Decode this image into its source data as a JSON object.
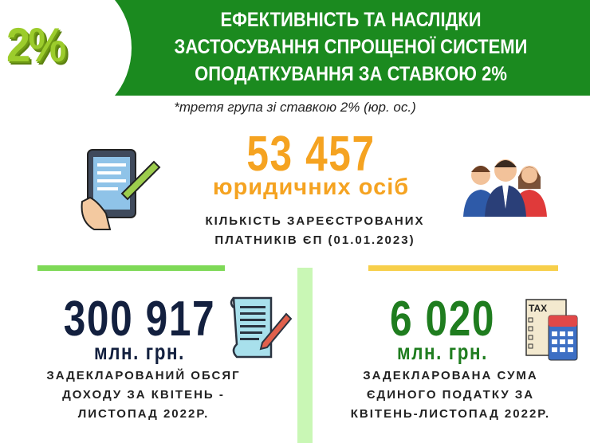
{
  "logo": {
    "text": "2%"
  },
  "header": {
    "title_lines": [
      "ЕФЕКТИВНІСТЬ ТА НАСЛІДКИ",
      "ЗАСТОСУВАННЯ СПРОЩЕНОЇ СИСТЕМИ",
      "ОПОДАТКУВАННЯ ЗА СТАВКОЮ 2%"
    ]
  },
  "subtitle": "*третя група зі ставкою 2% (юр. ос.)",
  "count": {
    "value": "53 457",
    "unit": "юридичних осіб",
    "desc_lines": [
      "КІЛЬКІСТЬ ЗАРЕЄСТРОВАНИХ",
      "ПЛАТНИКІВ ЄП (01.01.2023)"
    ]
  },
  "income": {
    "value": "300 917",
    "unit": "млн. грн.",
    "desc_lines": [
      "ЗАДЕКЛАРОВАНИЙ ОБСЯГ",
      "ДОХОДУ ЗА КВІТЕНЬ -",
      "ЛИСТОПАД 2022Р."
    ]
  },
  "tax": {
    "value": "6 020",
    "unit": "млн. грн.",
    "desc_lines": [
      "ЗАДЕКЛАРОВАНА СУМА",
      "ЄДИНОГО ПОДАТКУ ЗА",
      "КВІТЕНЬ-ЛИСТОПАД 2022Р."
    ],
    "icon_label": "TAX"
  },
  "colors": {
    "header": "#1b8a1f",
    "orange": "#f5a321",
    "navy": "#13203f",
    "green": "#1f7d1f",
    "bar_left": "#7ed957",
    "bar_right": "#f7cf4a"
  },
  "icons": [
    "tablet-hand-icon",
    "people-group-icon",
    "scroll-pen-icon",
    "tax-calculator-icon"
  ]
}
